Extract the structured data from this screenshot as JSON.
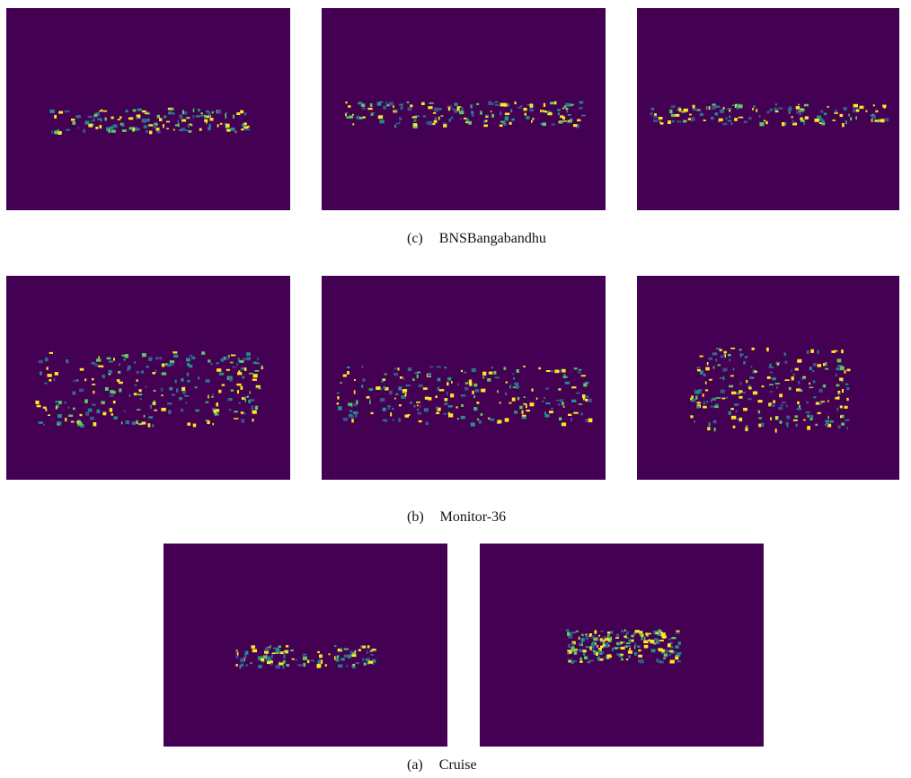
{
  "figure": {
    "rows": [
      {
        "label": "(c)",
        "caption": "BNSBangabandhu"
      },
      {
        "label": "(b)",
        "caption": "Monitor-36"
      },
      {
        "label": "(a)",
        "caption": "Cruise"
      }
    ]
  }
}
